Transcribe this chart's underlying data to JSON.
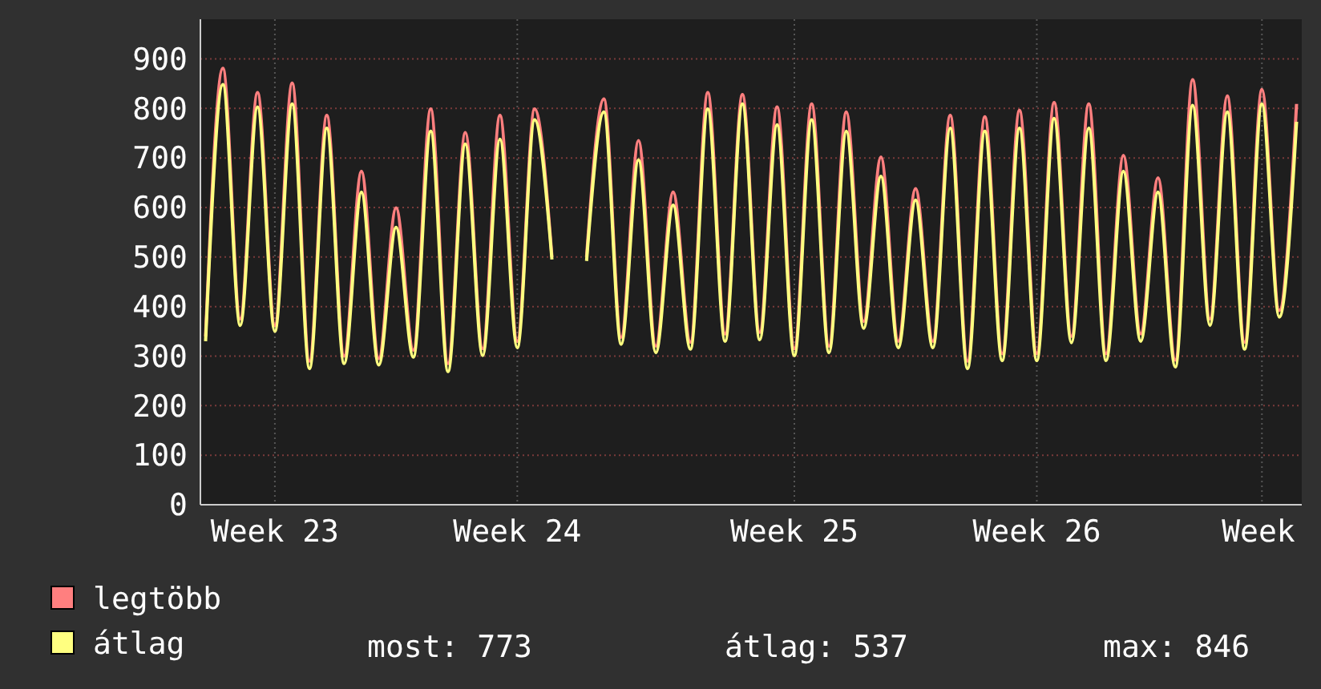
{
  "chart_data": {
    "type": "line",
    "categories": [
      null,
      null,
      null,
      null,
      "Week 23",
      null,
      null,
      null,
      null,
      null,
      null,
      null,
      null,
      null,
      null,
      null,
      null,
      null,
      "Week 24",
      null,
      null,
      null,
      null,
      null,
      null,
      null,
      null,
      null,
      null,
      null,
      null,
      null,
      null,
      null,
      "Week 25",
      null,
      null,
      null,
      null,
      null,
      null,
      null,
      null,
      null,
      null,
      null,
      null,
      null,
      "Week 26",
      null,
      null,
      null,
      null,
      null,
      null,
      null,
      null,
      null,
      null,
      null,
      null,
      "Week",
      null,
      null
    ],
    "series": [
      {
        "name": "legtöbb",
        "color": "#ff7f7f",
        "values": [
          340,
          881,
          375,
          832,
          362,
          851,
          290,
          786,
          300,
          673,
          295,
          599,
          312,
          799,
          285,
          751,
          315,
          786,
          330,
          799,
          500,
          null,
          500,
          819,
          338,
          735,
          320,
          631,
          328,
          832,
          345,
          828,
          348,
          803,
          315,
          809,
          320,
          793,
          370,
          702,
          330,
          638,
          330,
          786,
          290,
          783,
          305,
          796,
          305,
          812,
          340,
          809,
          305,
          705,
          345,
          660,
          292,
          858,
          375,
          825,
          328,
          838,
          392,
          809
        ]
      },
      {
        "name": "átlag",
        "color": "#ffff80",
        "values": [
          330,
          848,
          362,
          803,
          350,
          809,
          275,
          760,
          285,
          631,
          282,
          560,
          298,
          754,
          269,
          728,
          301,
          738,
          317,
          777,
          495,
          null,
          492,
          793,
          324,
          696,
          307,
          605,
          314,
          799,
          330,
          809,
          333,
          767,
          301,
          777,
          307,
          754,
          356,
          663,
          317,
          615,
          317,
          760,
          275,
          754,
          291,
          760,
          291,
          780,
          327,
          760,
          291,
          673,
          330,
          631,
          278,
          806,
          362,
          793,
          314,
          809,
          379,
          773
        ]
      }
    ],
    "ylim": [
      0,
      980
    ],
    "yticks": [
      0,
      100,
      200,
      300,
      400,
      500,
      600,
      700,
      800,
      900
    ],
    "grid": true,
    "legend": "bottom",
    "marker": "none",
    "line_style": "solid",
    "annotations": [
      "most: 773",
      "átlag: 537",
      "max: 846"
    ]
  }
}
